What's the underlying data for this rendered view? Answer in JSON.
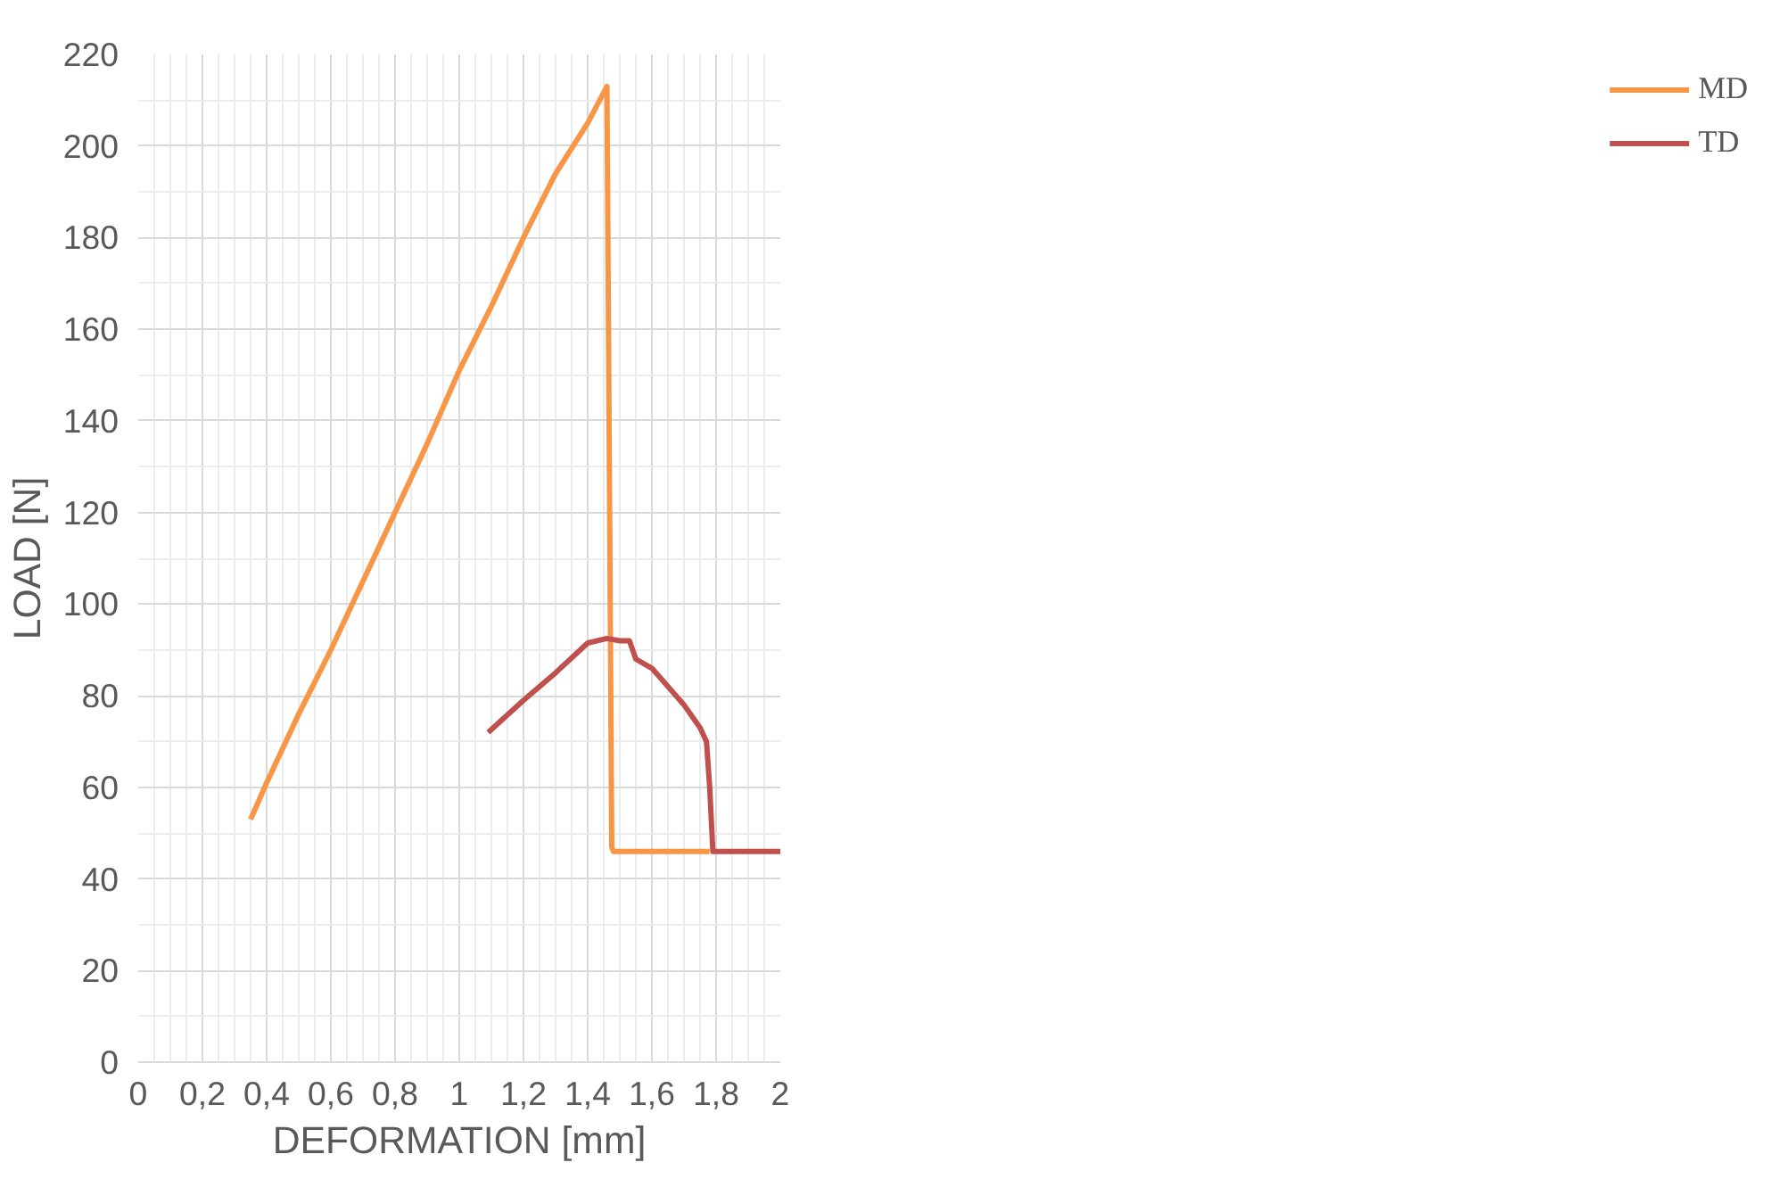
{
  "chart_data": {
    "type": "line",
    "xlabel": "DEFORMATION [mm]",
    "ylabel": "LOAD [N]",
    "xlim": [
      0,
      2
    ],
    "ylim": [
      0,
      220
    ],
    "xticks": [
      0,
      {
        "value": 0.2,
        "label": "0,2"
      },
      {
        "value": 0.4,
        "label": "0,4"
      },
      {
        "value": 0.6,
        "label": "0,6"
      },
      {
        "value": 0.8,
        "label": "0,8"
      },
      1,
      {
        "value": 1.2,
        "label": "1,2"
      },
      {
        "value": 1.4,
        "label": "1,4"
      },
      {
        "value": 1.6,
        "label": "1,6"
      },
      {
        "value": 1.8,
        "label": "1,8"
      },
      2
    ],
    "yticks": [
      0,
      20,
      40,
      60,
      80,
      100,
      120,
      140,
      160,
      180,
      200,
      220
    ],
    "grid": true,
    "legend": "right",
    "marker": "none",
    "line_style": "solid",
    "series": [
      {
        "name": "MD",
        "color": "#f79646",
        "x": [
          0.35,
          0.4,
          0.5,
          0.6,
          0.7,
          0.8,
          0.9,
          1.0,
          1.1,
          1.2,
          1.3,
          1.4,
          1.46,
          1.475,
          1.48,
          1.6,
          1.7,
          1.78
        ],
        "values": [
          53,
          61,
          76,
          90,
          105,
          120,
          135,
          151,
          165,
          180,
          194,
          205,
          213,
          47,
          46,
          46,
          46,
          46
        ]
      },
      {
        "name": "TD",
        "color": "#c0504d",
        "x": [
          1.09,
          1.2,
          1.3,
          1.4,
          1.46,
          1.5,
          1.53,
          1.55,
          1.6,
          1.7,
          1.75,
          1.77,
          1.78,
          1.79,
          1.85,
          2.0
        ],
        "values": [
          72,
          79,
          85,
          91.5,
          92.5,
          92,
          92,
          88,
          86,
          78,
          73,
          70,
          60,
          46,
          46,
          46
        ]
      }
    ]
  }
}
